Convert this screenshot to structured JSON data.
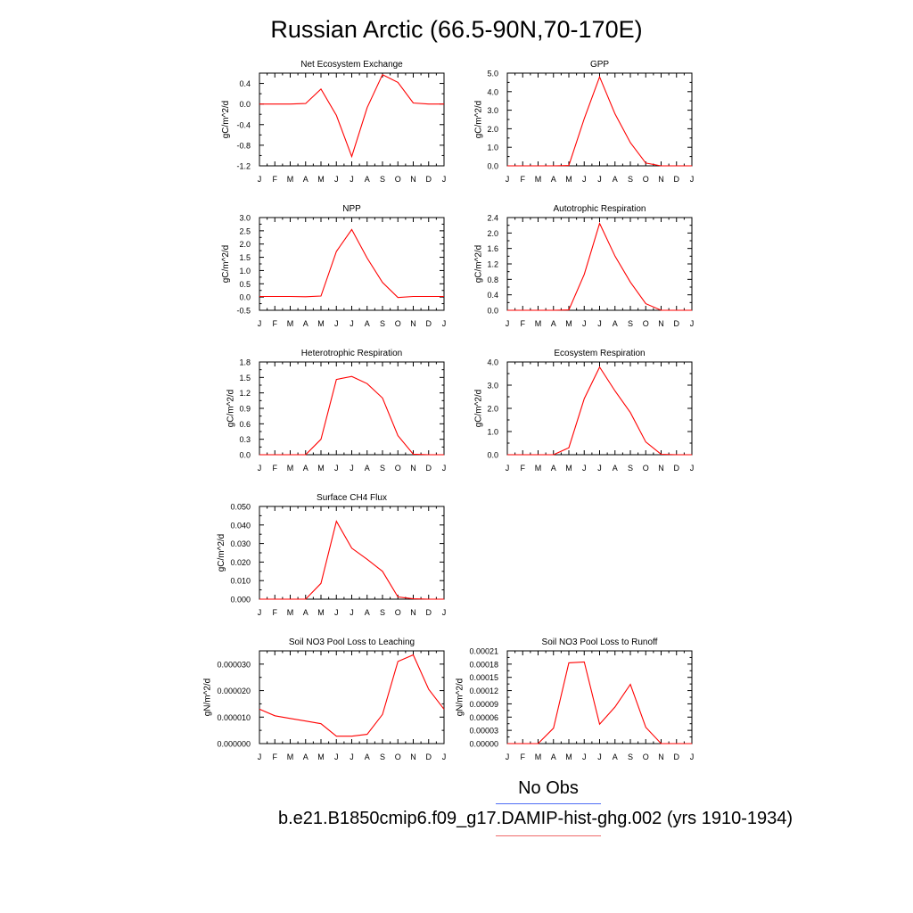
{
  "figure": {
    "title": "Russian Arctic (66.5-90N,70-170E)",
    "legend": {
      "obs_label": "No Obs",
      "case_label": "b.e21.B1850cmip6.f09_g17.DAMIP-hist-ghg.002 (yrs 1910-1934)",
      "obs_color": "#4f6df5",
      "case_color": "#f06a6a"
    }
  },
  "chart_data": [
    {
      "type": "line",
      "title": "Net Ecosystem Exchange",
      "ylabel": "gC/m^2/d",
      "x": [
        "J",
        "F",
        "M",
        "A",
        "M",
        "J",
        "J",
        "A",
        "S",
        "O",
        "N",
        "D",
        "J"
      ],
      "ylim": [
        -1.2,
        0.6
      ],
      "yticks": [
        "0.4",
        "0.0",
        "-0.4",
        "-0.8",
        "-1.2"
      ],
      "series": [
        {
          "color": "#ff0000",
          "values": [
            0.0,
            0.0,
            0.0,
            0.01,
            0.29,
            -0.22,
            -1.02,
            -0.07,
            0.57,
            0.42,
            0.02,
            0.0,
            0.0
          ]
        }
      ]
    },
    {
      "type": "line",
      "title": "GPP",
      "ylabel": "gC/m^2/d",
      "x": [
        "J",
        "F",
        "M",
        "A",
        "M",
        "J",
        "J",
        "A",
        "S",
        "O",
        "N",
        "D",
        "J"
      ],
      "ylim": [
        0,
        5
      ],
      "yticks": [
        "5.0",
        "4.0",
        "3.0",
        "2.0",
        "1.0",
        "0.0"
      ],
      "series": [
        {
          "color": "#ff0000",
          "values": [
            0,
            0,
            0,
            0,
            0.02,
            2.55,
            4.8,
            2.8,
            1.25,
            0.15,
            0.0,
            0,
            0
          ]
        }
      ]
    },
    {
      "type": "line",
      "title": "NPP",
      "ylabel": "gC/m^2/d",
      "x": [
        "J",
        "F",
        "M",
        "A",
        "M",
        "J",
        "J",
        "A",
        "S",
        "O",
        "N",
        "D",
        "J"
      ],
      "ylim": [
        -0.5,
        3.0
      ],
      "yticks": [
        "3.0",
        "2.5",
        "2.0",
        "1.5",
        "1.0",
        "0.5",
        "0.0",
        "-0.5"
      ],
      "series": [
        {
          "color": "#ff0000",
          "values": [
            0.02,
            0.02,
            0.02,
            0.01,
            0.04,
            1.72,
            2.55,
            1.47,
            0.55,
            -0.02,
            0.02,
            0.02,
            0.02
          ]
        }
      ]
    },
    {
      "type": "line",
      "title": "Autotrophic Respiration",
      "ylabel": "gC/m^2/d",
      "x": [
        "J",
        "F",
        "M",
        "A",
        "M",
        "J",
        "J",
        "A",
        "S",
        "O",
        "N",
        "D",
        "J"
      ],
      "ylim": [
        0,
        2.4
      ],
      "yticks": [
        "2.4",
        "2.0",
        "1.6",
        "1.2",
        "0.8",
        "0.4",
        "0.0"
      ],
      "series": [
        {
          "color": "#ff0000",
          "values": [
            0,
            0,
            0,
            0,
            0.01,
            0.93,
            2.25,
            1.4,
            0.73,
            0.17,
            0.0,
            0,
            0
          ]
        }
      ]
    },
    {
      "type": "line",
      "title": "Heterotrophic Respiration",
      "ylabel": "gC/m^2/d",
      "x": [
        "J",
        "F",
        "M",
        "A",
        "M",
        "J",
        "J",
        "A",
        "S",
        "O",
        "N",
        "D",
        "J"
      ],
      "ylim": [
        0,
        1.8
      ],
      "yticks": [
        "1.8",
        "1.5",
        "1.2",
        "0.9",
        "0.6",
        "0.3",
        "0.0"
      ],
      "series": [
        {
          "color": "#ff0000",
          "values": [
            0,
            0,
            0,
            0,
            0.3,
            1.46,
            1.52,
            1.38,
            1.1,
            0.37,
            0.01,
            0,
            0
          ]
        }
      ]
    },
    {
      "type": "line",
      "title": "Ecosystem Respiration",
      "ylabel": "gC/m^2/d",
      "x": [
        "J",
        "F",
        "M",
        "A",
        "M",
        "J",
        "J",
        "A",
        "S",
        "O",
        "N",
        "D",
        "J"
      ],
      "ylim": [
        0,
        4.0
      ],
      "yticks": [
        "4.0",
        "3.0",
        "2.0",
        "1.0",
        "0.0"
      ],
      "series": [
        {
          "color": "#ff0000",
          "values": [
            0,
            0,
            0,
            0,
            0.3,
            2.42,
            3.78,
            2.75,
            1.82,
            0.55,
            0.02,
            0,
            0
          ]
        }
      ]
    },
    {
      "type": "line",
      "title": "Surface CH4 Flux",
      "ylabel": "gC/m^2/d",
      "x": [
        "J",
        "F",
        "M",
        "A",
        "M",
        "J",
        "J",
        "A",
        "S",
        "O",
        "N",
        "D",
        "J"
      ],
      "ylim": [
        0,
        0.05
      ],
      "yticks": [
        "0.050",
        "0.040",
        "0.030",
        "0.020",
        "0.010",
        "0.000"
      ],
      "series": [
        {
          "color": "#ff0000",
          "values": [
            0,
            0,
            0,
            0,
            0.0085,
            0.042,
            0.0275,
            0.0215,
            0.015,
            0.0012,
            0.0002,
            0,
            0
          ]
        }
      ]
    },
    {
      "type": "line",
      "title": "Soil NO3 Pool Loss to Leaching",
      "ylabel": "gN/m^2/d",
      "x": [
        "J",
        "F",
        "M",
        "A",
        "M",
        "J",
        "J",
        "A",
        "S",
        "O",
        "N",
        "D",
        "J"
      ],
      "ylim": [
        0,
        3.5e-05
      ],
      "yticks": [
        "0.000030",
        "0.000020",
        "0.000010",
        "0.000000"
      ],
      "series": [
        {
          "color": "#ff0000",
          "values": [
            1.3e-05,
            1.05e-05,
            9.5e-06,
            8.5e-06,
            7.5e-06,
            2.8e-06,
            2.8e-06,
            3.5e-06,
            1.1e-05,
            3.1e-05,
            3.35e-05,
            2.05e-05,
            1.3e-05
          ]
        }
      ]
    },
    {
      "type": "line",
      "title": "Soil NO3 Pool Loss to Runoff",
      "ylabel": "gN/m^2/d",
      "x": [
        "J",
        "F",
        "M",
        "A",
        "M",
        "J",
        "J",
        "A",
        "S",
        "O",
        "N",
        "D",
        "J"
      ],
      "ylim": [
        0,
        0.00021
      ],
      "yticks": [
        "0.00021",
        "0.00018",
        "0.00015",
        "0.00012",
        "0.00009",
        "0.00006",
        "0.00003",
        "0.00000"
      ],
      "series": [
        {
          "color": "#ff0000",
          "values": [
            0,
            0,
            0,
            3.5e-05,
            0.000183,
            0.000185,
            4.4e-05,
            8.3e-05,
            0.000134,
            3.7e-05,
            0.0,
            0,
            0
          ]
        }
      ]
    }
  ]
}
